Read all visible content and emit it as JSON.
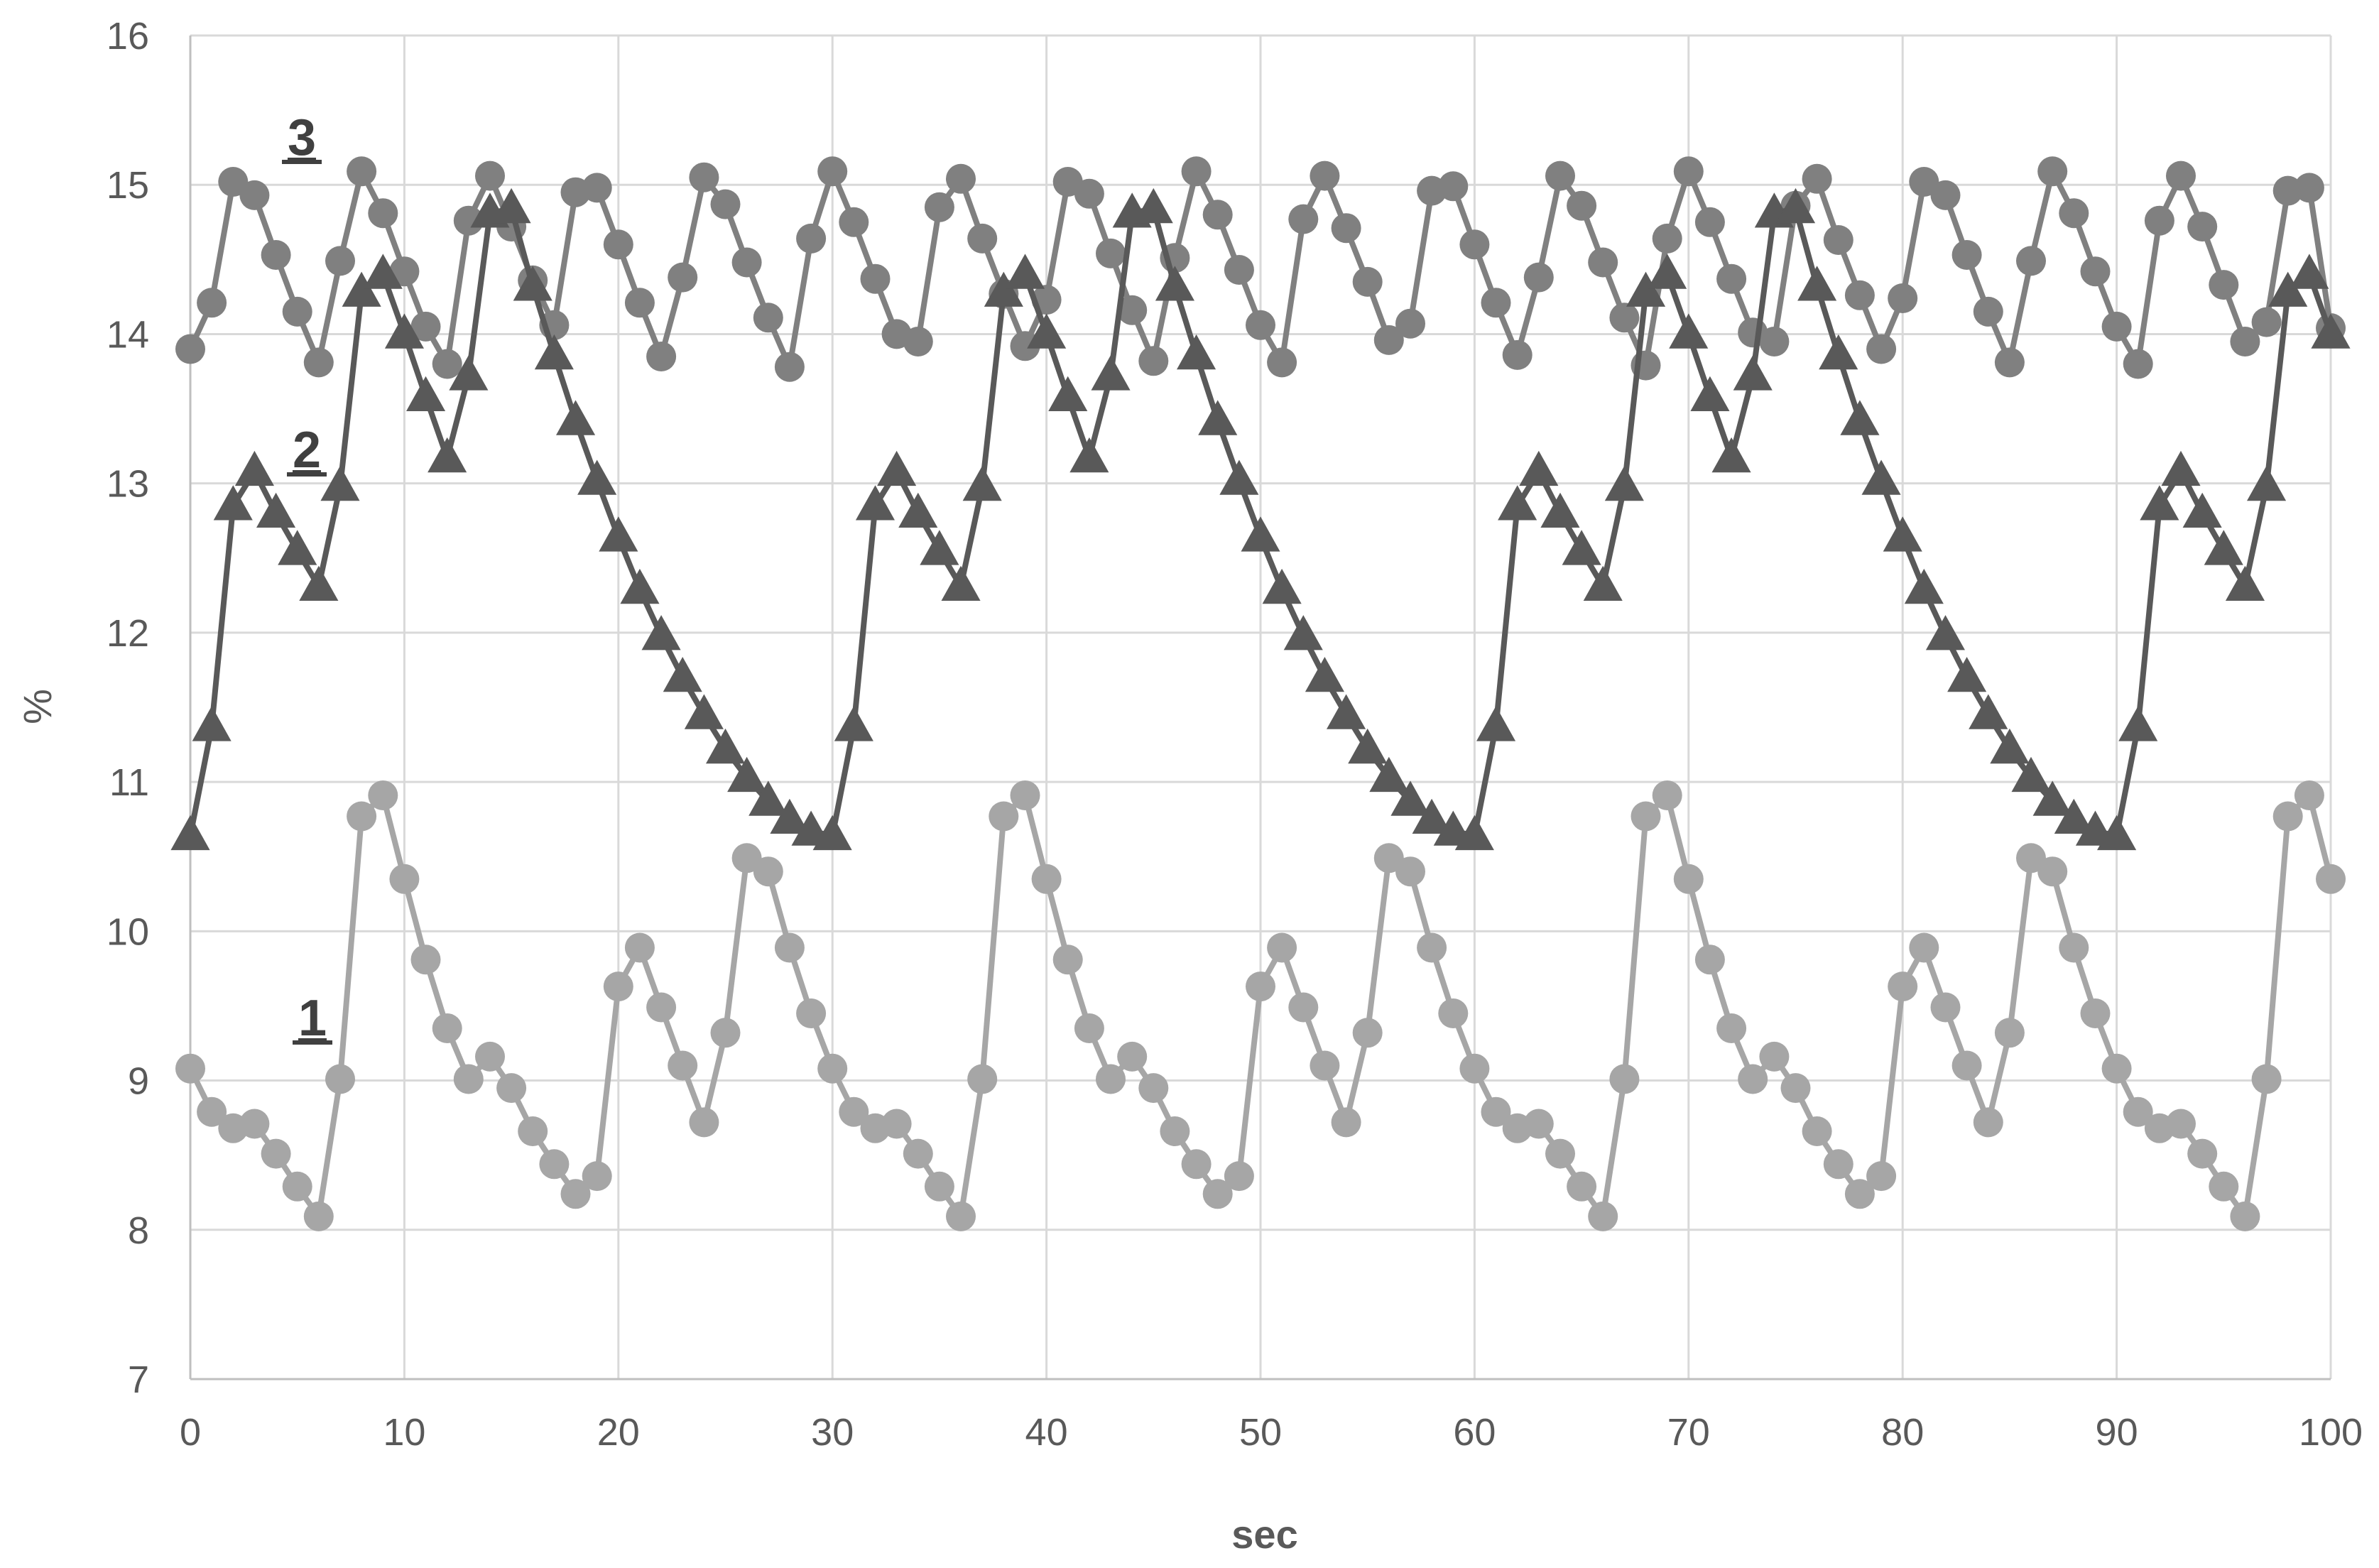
{
  "chart_data": {
    "type": "line",
    "xlabel": "sec",
    "ylabel": "%",
    "xlim": [
      0,
      100
    ],
    "ylim": [
      7,
      16
    ],
    "x_ticks": [
      0,
      10,
      20,
      30,
      40,
      50,
      60,
      70,
      80,
      90,
      100
    ],
    "y_ticks": [
      7,
      8,
      9,
      10,
      11,
      12,
      13,
      14,
      15,
      16
    ],
    "grid": true,
    "series_labels": [
      "1",
      "2",
      "3"
    ],
    "series": [
      {
        "name": "1",
        "marker": "circle",
        "color": "#a6a6a6",
        "x_start": 0,
        "x_step": 1,
        "values": [
          9.08,
          8.79,
          8.68,
          8.71,
          8.51,
          8.29,
          8.09,
          9.01,
          10.77,
          10.91,
          10.35,
          9.81,
          9.35,
          9.01,
          9.16,
          8.95,
          8.66,
          8.44,
          8.24,
          8.36,
          9.63,
          9.89,
          9.49,
          9.1,
          8.72,
          9.32,
          10.49,
          10.4,
          9.89,
          9.45,
          9.08,
          8.79,
          8.68,
          8.71,
          8.51,
          8.29,
          8.09,
          9.01,
          10.77,
          10.91,
          10.35,
          9.81,
          9.35,
          9.01,
          9.16,
          8.95,
          8.66,
          8.44,
          8.24,
          8.36,
          9.63,
          9.89,
          9.49,
          9.1,
          8.72,
          9.32,
          10.49,
          10.4,
          9.89,
          9.45,
          9.08,
          8.79,
          8.68,
          8.71,
          8.51,
          8.29,
          8.09,
          9.01,
          10.77,
          10.91,
          10.35,
          9.81,
          9.35,
          9.01,
          9.16,
          8.95,
          8.66,
          8.44,
          8.24,
          8.36,
          9.63,
          9.89,
          9.49,
          9.1,
          8.72,
          9.32,
          10.49,
          10.4,
          9.89,
          9.45,
          9.08,
          8.79,
          8.68,
          8.71,
          8.51,
          8.29,
          8.09,
          9.01,
          10.77,
          10.91,
          10.35
        ]
      },
      {
        "name": "2",
        "marker": "triangle",
        "color": "#595959",
        "x_start": 0,
        "x_step": 1,
        "values": [
          10.64,
          11.37,
          12.85,
          13.08,
          12.8,
          12.55,
          12.31,
          12.98,
          14.28,
          14.4,
          14.0,
          13.58,
          13.17,
          13.72,
          14.81,
          14.84,
          14.32,
          13.86,
          13.42,
          13.02,
          12.64,
          12.29,
          11.98,
          11.7,
          11.45,
          11.22,
          11.03,
          10.87,
          10.75,
          10.67,
          10.64,
          11.37,
          12.85,
          13.08,
          12.8,
          12.55,
          12.31,
          12.98,
          14.28,
          14.4,
          14.0,
          13.58,
          13.17,
          13.72,
          14.81,
          14.84,
          14.32,
          13.86,
          13.42,
          13.02,
          12.64,
          12.29,
          11.98,
          11.7,
          11.45,
          11.22,
          11.03,
          10.87,
          10.75,
          10.67,
          10.64,
          11.37,
          12.85,
          13.08,
          12.8,
          12.55,
          12.31,
          12.98,
          14.28,
          14.4,
          14.0,
          13.58,
          13.17,
          13.72,
          14.81,
          14.84,
          14.32,
          13.86,
          13.42,
          13.02,
          12.64,
          12.29,
          11.98,
          11.7,
          11.45,
          11.22,
          11.03,
          10.87,
          10.75,
          10.67,
          10.64,
          11.37,
          12.85,
          13.08,
          12.8,
          12.55,
          12.31,
          12.98,
          14.28,
          14.4,
          14.0
        ]
      },
      {
        "name": "3",
        "marker": "circle",
        "color": "#808080",
        "x_start": 0,
        "x_step": 1,
        "values": [
          13.9,
          14.21,
          15.02,
          14.93,
          14.53,
          14.15,
          13.81,
          14.49,
          15.09,
          14.81,
          14.42,
          14.05,
          13.8,
          14.76,
          15.06,
          14.72,
          14.36,
          14.06,
          14.95,
          14.98,
          14.6,
          14.21,
          13.85,
          14.38,
          15.05,
          14.87,
          14.48,
          14.11,
          13.78,
          14.64,
          15.09,
          14.75,
          14.37,
          14.0,
          13.95,
          14.85,
          15.04,
          14.64,
          14.27,
          13.92,
          14.23,
          15.02,
          14.94,
          14.54,
          14.16,
          13.82,
          14.51,
          15.09,
          14.8,
          14.43,
          14.06,
          13.81,
          14.77,
          15.06,
          14.71,
          14.35,
          13.96,
          14.07,
          14.96,
          14.99,
          14.6,
          14.21,
          13.86,
          14.38,
          15.06,
          14.86,
          14.48,
          14.11,
          13.79,
          14.64,
          15.09,
          14.75,
          14.37,
          14.01,
          13.95,
          14.86,
          15.04,
          14.63,
          14.26,
          13.9,
          14.24,
          15.02,
          14.93,
          14.53,
          14.15,
          13.81,
          14.49,
          15.09,
          14.81,
          14.42,
          14.05,
          13.8,
          14.76,
          15.06,
          14.72,
          14.33,
          13.95,
          14.08,
          14.96,
          14.98,
          14.04
        ]
      }
    ]
  }
}
